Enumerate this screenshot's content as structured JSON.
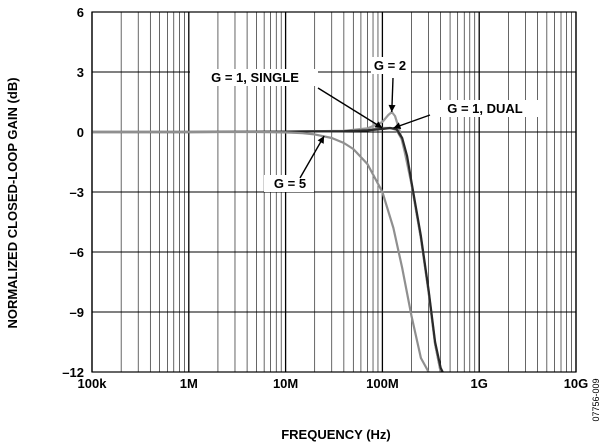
{
  "chart_data": {
    "type": "line",
    "xlabel": "FREQUENCY (Hz)",
    "ylabel": "NORMALIZED CLOSED-LOOP GAIN (dB)",
    "x_scale": "log",
    "xlim": [
      100000,
      10000000000
    ],
    "ylim": [
      -12,
      6
    ],
    "x_ticks": [
      100000,
      1000000,
      10000000,
      100000000,
      1000000000,
      10000000000
    ],
    "x_tick_labels": [
      "100k",
      "1M",
      "10M",
      "100M",
      "1G",
      "10G"
    ],
    "y_ticks": [
      6,
      3,
      0,
      -3,
      -6,
      -9,
      -12
    ],
    "y_tick_labels": [
      "6",
      "3",
      "0",
      "–3",
      "–6",
      "–9",
      "–12"
    ],
    "grid": true,
    "figure_code": "07756-009",
    "series": [
      {
        "label": "G = 1, SINGLE",
        "color": "#8a8a8a",
        "x": [
          100000,
          1000000,
          10000000,
          40000000,
          70000000,
          100000000,
          120000000,
          140000000,
          160000000,
          180000000,
          200000000,
          250000000,
          300000000,
          350000000,
          400000000
        ],
        "y": [
          0,
          0,
          0.02,
          0.05,
          0.1,
          0.2,
          0.2,
          0.1,
          -0.4,
          -1.3,
          -2.6,
          -5.3,
          -8.0,
          -10.6,
          -12.0
        ]
      },
      {
        "label": "G = 2",
        "color": "#9a9a9a",
        "x": [
          100000,
          1000000,
          10000000,
          40000000,
          70000000,
          100000000,
          115000000,
          125000000,
          135000000,
          150000000,
          170000000,
          200000000,
          250000000,
          300000000,
          350000000,
          400000000
        ],
        "y": [
          0,
          0,
          0.02,
          0.06,
          0.18,
          0.5,
          0.85,
          1.0,
          0.8,
          0.1,
          -1.0,
          -2.6,
          -5.3,
          -8.0,
          -10.6,
          -12.0
        ]
      },
      {
        "label": "G = 1, DUAL",
        "color": "#2a2a2a",
        "x": [
          100000,
          1000000,
          10000000,
          40000000,
          70000000,
          100000000,
          120000000,
          140000000,
          160000000,
          180000000,
          200000000,
          250000000,
          300000000,
          350000000,
          400000000,
          420000000
        ],
        "y": [
          0,
          0,
          0.02,
          0.04,
          0.08,
          0.15,
          0.2,
          0.15,
          -0.3,
          -1.2,
          -2.5,
          -5.2,
          -7.9,
          -10.5,
          -11.8,
          -12.0
        ]
      },
      {
        "label": "G = 5",
        "color": "#8f8f8f",
        "x": [
          100000,
          1000000,
          5000000,
          10000000,
          15000000,
          20000000,
          30000000,
          40000000,
          50000000,
          70000000,
          100000000,
          130000000,
          160000000,
          200000000,
          250000000,
          300000000
        ],
        "y": [
          0,
          0,
          0,
          -0.02,
          -0.06,
          -0.12,
          -0.3,
          -0.55,
          -0.85,
          -1.6,
          -3.0,
          -4.8,
          -6.8,
          -9.2,
          -11.3,
          -12.0
        ]
      }
    ],
    "annotations": [
      {
        "text": "G = 1, SINGLE",
        "target_x": 100000000,
        "target_y": 0.2
      },
      {
        "text": "G = 2",
        "target_x": 125000000,
        "target_y": 1.0
      },
      {
        "text": "G = 1, DUAL",
        "target_x": 130000000,
        "target_y": 0.2
      },
      {
        "text": "G = 5",
        "target_x": 25000000,
        "target_y": -0.2
      }
    ]
  }
}
